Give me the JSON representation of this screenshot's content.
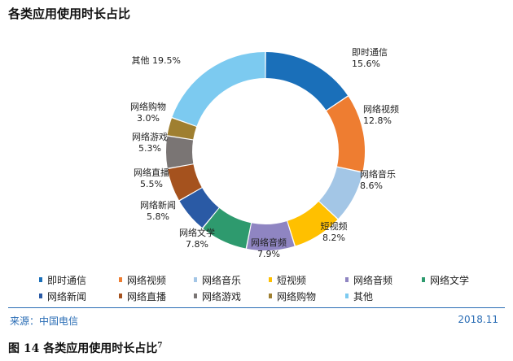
{
  "title": "各类应用使用时长占比",
  "chart_data": {
    "type": "pie",
    "style": "donut",
    "categories": [
      "即时通信",
      "网络视频",
      "网络音乐",
      "短视频",
      "网络音频",
      "网络文学",
      "网络新闻",
      "网络直播",
      "网络游戏",
      "网络购物",
      "其他"
    ],
    "values": [
      15.6,
      12.8,
      8.6,
      8.2,
      7.9,
      7.8,
      5.8,
      5.5,
      5.3,
      3.0,
      19.5
    ],
    "value_labels": [
      "15.6%",
      "12.8%",
      "8.6%",
      "8.2%",
      "7.9%",
      "7.8%",
      "5.8%",
      "5.5%",
      "5.3%",
      "3.0%",
      "19.5%"
    ],
    "colors": [
      "#1a6fb9",
      "#ee7d31",
      "#a3c6e6",
      "#ffc000",
      "#8f85c2",
      "#2e9a6e",
      "#2a5aa5",
      "#a5521e",
      "#7a7574",
      "#9f7f30",
      "#7ccaf0"
    ],
    "legend_position": "bottom"
  },
  "legend": {
    "items": [
      "即时通信",
      "网络视频",
      "网络音乐",
      "短视频",
      "网络音频",
      "网络文学",
      "网络新闻",
      "网络直播",
      "网络游戏",
      "网络购物",
      "其他"
    ]
  },
  "footer": {
    "source": "来源：中国电信",
    "date": "2018.11",
    "caption": "图 14   各类应用使用时长占比",
    "caption_sup": "7"
  }
}
